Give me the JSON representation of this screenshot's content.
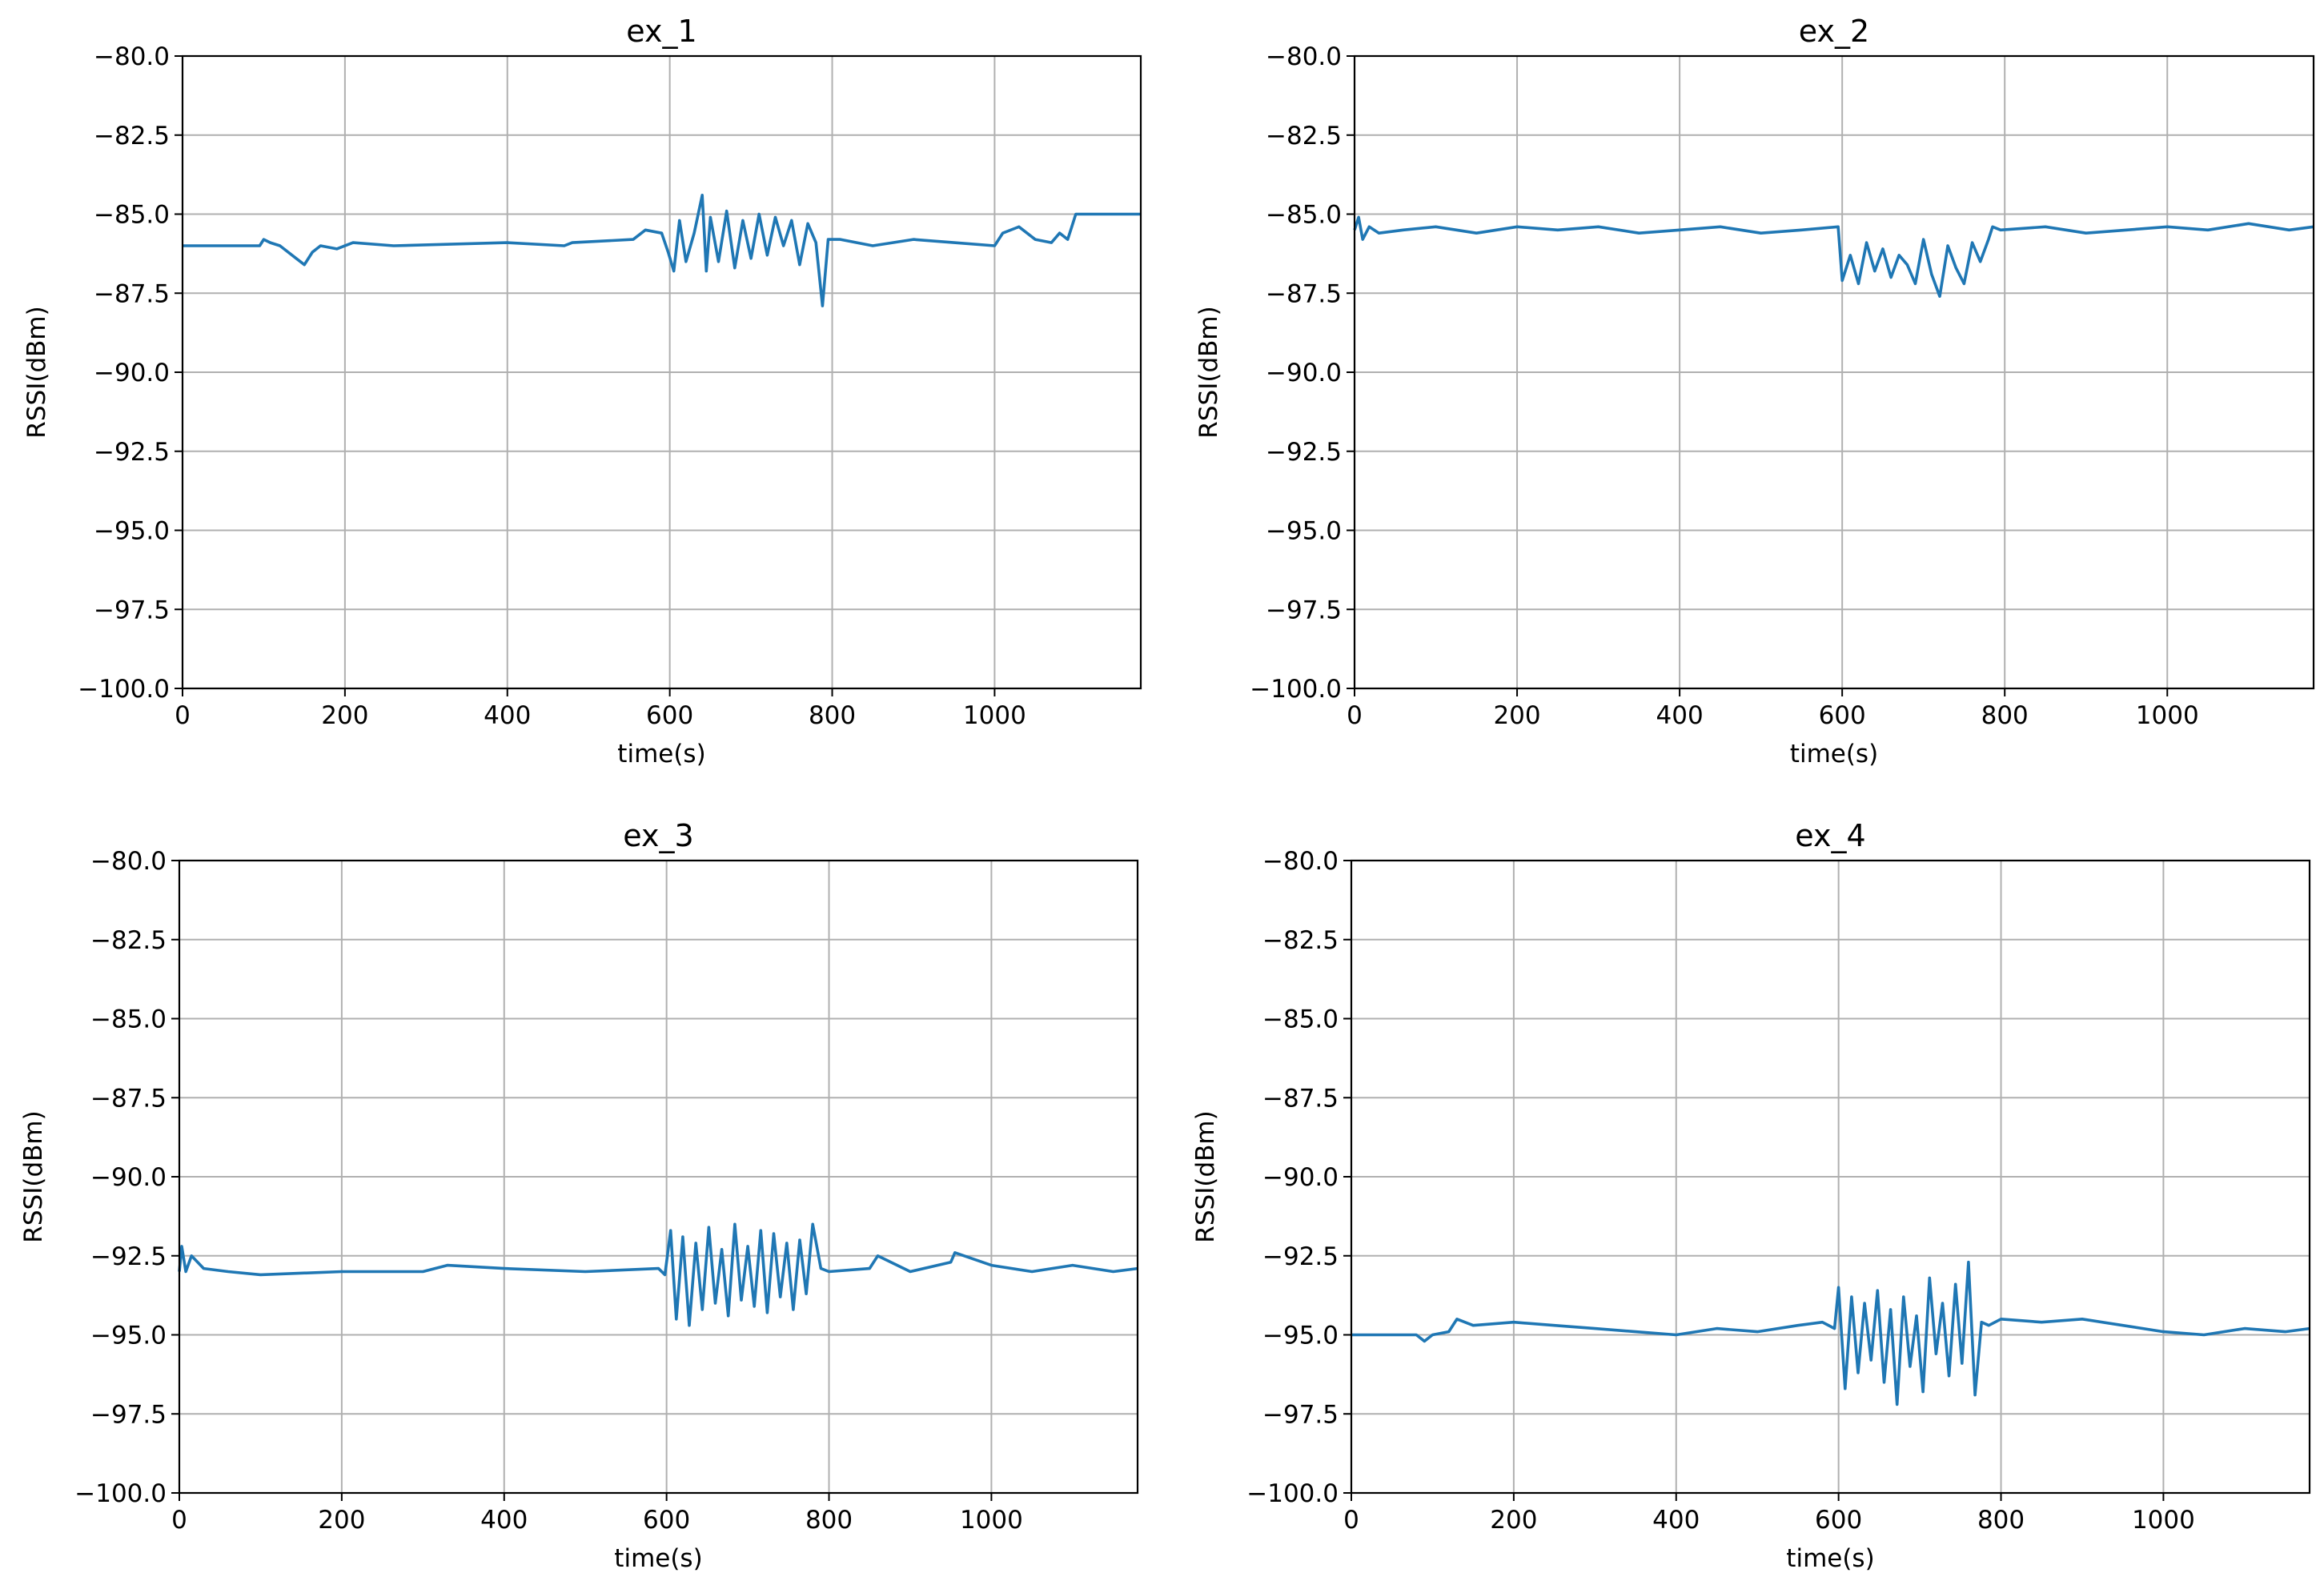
{
  "colors": {
    "line": "#1f77b4",
    "grid": "#b0b0b0"
  },
  "chart_data": [
    {
      "type": "line",
      "title": "ex_1",
      "xlabel": "time(s)",
      "ylabel": "RSSI(dBm)",
      "xlim": [
        0,
        1180
      ],
      "ylim": [
        -100,
        -80
      ],
      "xticks": [
        0,
        200,
        400,
        600,
        800,
        1000
      ],
      "xtick_labels": [
        "0",
        "200",
        "400",
        "600",
        "800",
        "1000"
      ],
      "yticks": [
        -80,
        -82.5,
        -85,
        -87.5,
        -90,
        -92.5,
        -95,
        -97.5,
        -100
      ],
      "ytick_labels": [
        "−80.0",
        "−82.5",
        "−85.0",
        "−87.5",
        "−90.0",
        "−92.5",
        "−95.0",
        "−97.5",
        "−100.0"
      ],
      "grid": true,
      "series": [
        {
          "name": "RSSI",
          "x": [
            0,
            95,
            100,
            108,
            120,
            140,
            150,
            160,
            170,
            190,
            210,
            260,
            400,
            470,
            480,
            555,
            570,
            590,
            598,
            605,
            612,
            620,
            630,
            640,
            645,
            650,
            660,
            670,
            680,
            690,
            700,
            710,
            720,
            730,
            740,
            750,
            760,
            770,
            780,
            788,
            795,
            810,
            850,
            900,
            950,
            1000,
            1010,
            1030,
            1050,
            1070,
            1080,
            1090,
            1095,
            1100,
            1180
          ],
          "y": [
            -86,
            -86,
            -85.8,
            -85.9,
            -86,
            -86.4,
            -86.6,
            -86.2,
            -86,
            -86.1,
            -85.9,
            -86,
            -85.9,
            -86,
            -85.9,
            -85.8,
            -85.5,
            -85.6,
            -86.2,
            -86.8,
            -85.2,
            -86.5,
            -85.6,
            -84.4,
            -86.8,
            -85.1,
            -86.5,
            -84.9,
            -86.7,
            -85.2,
            -86.4,
            -85,
            -86.3,
            -85.1,
            -86,
            -85.2,
            -86.6,
            -85.3,
            -85.9,
            -87.9,
            -85.8,
            -85.8,
            -86,
            -85.8,
            -85.9,
            -86,
            -85.6,
            -85.4,
            -85.8,
            -85.9,
            -85.6,
            -85.8,
            -85.4,
            -85,
            -85
          ]
        }
      ]
    },
    {
      "type": "line",
      "title": "ex_2",
      "xlabel": "time(s)",
      "ylabel": "RSSI(dBm)",
      "xlim": [
        0,
        1180
      ],
      "ylim": [
        -100,
        -80
      ],
      "xticks": [
        0,
        200,
        400,
        600,
        800,
        1000
      ],
      "xtick_labels": [
        "0",
        "200",
        "400",
        "600",
        "800",
        "1000"
      ],
      "yticks": [
        -80,
        -82.5,
        -85,
        -87.5,
        -90,
        -92.5,
        -95,
        -97.5,
        -100
      ],
      "ytick_labels": [
        "−80.0",
        "−82.5",
        "−85.0",
        "−87.5",
        "−90.0",
        "−92.5",
        "−95.0",
        "−97.5",
        "−100.0"
      ],
      "grid": true,
      "series": [
        {
          "name": "RSSI",
          "x": [
            0,
            5,
            10,
            18,
            30,
            60,
            100,
            150,
            200,
            250,
            300,
            350,
            400,
            450,
            500,
            550,
            595,
            600,
            610,
            620,
            630,
            640,
            650,
            660,
            670,
            680,
            690,
            700,
            710,
            720,
            730,
            740,
            750,
            760,
            770,
            780,
            785,
            795,
            850,
            900,
            950,
            1000,
            1050,
            1100,
            1150,
            1180
          ],
          "y": [
            -85.5,
            -85.1,
            -85.8,
            -85.4,
            -85.6,
            -85.5,
            -85.4,
            -85.6,
            -85.4,
            -85.5,
            -85.4,
            -85.6,
            -85.5,
            -85.4,
            -85.6,
            -85.5,
            -85.4,
            -87.1,
            -86.3,
            -87.2,
            -85.9,
            -86.8,
            -86.1,
            -87.0,
            -86.3,
            -86.6,
            -87.2,
            -85.8,
            -86.9,
            -87.6,
            -86.0,
            -86.7,
            -87.2,
            -85.9,
            -86.5,
            -85.8,
            -85.4,
            -85.5,
            -85.4,
            -85.6,
            -85.5,
            -85.4,
            -85.5,
            -85.3,
            -85.5,
            -85.4
          ]
        }
      ]
    },
    {
      "type": "line",
      "title": "ex_3",
      "xlabel": "time(s)",
      "ylabel": "RSSI(dBm)",
      "xlim": [
        0,
        1180
      ],
      "ylim": [
        -100,
        -80
      ],
      "xticks": [
        0,
        200,
        400,
        600,
        800,
        1000
      ],
      "xtick_labels": [
        "0",
        "200",
        "400",
        "600",
        "800",
        "1000"
      ],
      "yticks": [
        -80,
        -82.5,
        -85,
        -87.5,
        -90,
        -92.5,
        -95,
        -97.5,
        -100
      ],
      "ytick_labels": [
        "−80.0",
        "−82.5",
        "−85.0",
        "−87.5",
        "−90.0",
        "−92.5",
        "−95.0",
        "−97.5",
        "−100.0"
      ],
      "grid": true,
      "series": [
        {
          "name": "RSSI",
          "x": [
            0,
            3,
            8,
            15,
            30,
            60,
            100,
            200,
            300,
            330,
            400,
            500,
            590,
            598,
            605,
            612,
            620,
            628,
            636,
            644,
            652,
            660,
            668,
            676,
            684,
            692,
            700,
            708,
            716,
            724,
            732,
            740,
            748,
            756,
            764,
            772,
            780,
            790,
            800,
            850,
            860,
            900,
            950,
            955,
            1000,
            1050,
            1100,
            1150,
            1180
          ],
          "y": [
            -93,
            -92.2,
            -93,
            -92.5,
            -92.9,
            -93,
            -93.1,
            -93,
            -93,
            -92.8,
            -92.9,
            -93,
            -92.9,
            -93.1,
            -91.7,
            -94.5,
            -91.9,
            -94.7,
            -92.1,
            -94.2,
            -91.6,
            -94.0,
            -92.3,
            -94.4,
            -91.5,
            -93.9,
            -92.2,
            -94.1,
            -91.7,
            -94.3,
            -91.8,
            -93.8,
            -92.1,
            -94.2,
            -92.0,
            -93.7,
            -91.5,
            -92.9,
            -93,
            -92.9,
            -92.5,
            -93,
            -92.7,
            -92.4,
            -92.8,
            -93,
            -92.8,
            -93,
            -92.9
          ]
        }
      ]
    },
    {
      "type": "line",
      "title": "ex_4",
      "xlabel": "time(s)",
      "ylabel": "RSSI(dBm)",
      "xlim": [
        0,
        1180
      ],
      "ylim": [
        -100,
        -80
      ],
      "xticks": [
        0,
        200,
        400,
        600,
        800,
        1000
      ],
      "xtick_labels": [
        "0",
        "200",
        "400",
        "600",
        "800",
        "1000"
      ],
      "yticks": [
        -80,
        -82.5,
        -85,
        -87.5,
        -90,
        -92.5,
        -95,
        -97.5,
        -100
      ],
      "ytick_labels": [
        "−80.0",
        "−82.5",
        "−85.0",
        "−87.5",
        "−90.0",
        "−92.5",
        "−95.0",
        "−97.5",
        "−100.0"
      ],
      "grid": true,
      "series": [
        {
          "name": "RSSI",
          "x": [
            0,
            80,
            90,
            100,
            120,
            130,
            150,
            200,
            250,
            300,
            350,
            400,
            450,
            500,
            550,
            580,
            595,
            600,
            608,
            616,
            624,
            632,
            640,
            648,
            656,
            664,
            672,
            680,
            688,
            696,
            704,
            712,
            720,
            728,
            736,
            744,
            752,
            760,
            768,
            776,
            785,
            800,
            850,
            900,
            950,
            1000,
            1050,
            1100,
            1150,
            1180
          ],
          "y": [
            -95,
            -95,
            -95.2,
            -95,
            -94.9,
            -94.5,
            -94.7,
            -94.6,
            -94.7,
            -94.8,
            -94.9,
            -95,
            -94.8,
            -94.9,
            -94.7,
            -94.6,
            -94.8,
            -93.5,
            -96.7,
            -93.8,
            -96.2,
            -94.0,
            -95.8,
            -93.6,
            -96.5,
            -94.2,
            -97.2,
            -93.8,
            -96.0,
            -94.4,
            -96.8,
            -93.2,
            -95.6,
            -94.0,
            -96.3,
            -93.4,
            -95.9,
            -92.7,
            -96.9,
            -94.6,
            -94.7,
            -94.5,
            -94.6,
            -94.5,
            -94.7,
            -94.9,
            -95,
            -94.8,
            -94.9,
            -94.8
          ]
        }
      ]
    }
  ]
}
